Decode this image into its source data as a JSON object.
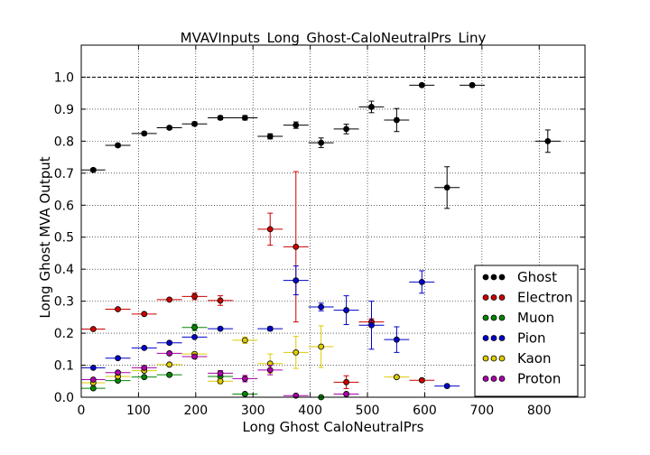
{
  "chart_data": {
    "type": "scatter",
    "title": "MVAVInputs_Long_Ghost-CaloNeutralPrs_Liny",
    "xlabel": "Long Ghost CaloNeutralPrs",
    "ylabel": "Long Ghost MVA Output",
    "xlim": [
      0,
      880
    ],
    "ylim": [
      0,
      1.1
    ],
    "xticks": [
      "0",
      "100",
      "200",
      "300",
      "400",
      "500",
      "600",
      "700",
      "800"
    ],
    "yticks": [
      "0.0",
      "0.1",
      "0.2",
      "0.3",
      "0.4",
      "0.5",
      "0.6",
      "0.7",
      "0.8",
      "0.9",
      "1.0"
    ],
    "reference_line": 1.0,
    "legend_position": "lower-right",
    "series": [
      {
        "name": "Ghost",
        "color": "#000000",
        "points": [
          {
            "x": 21,
            "y": 0.71,
            "xerr": 21,
            "yerr": 0.005
          },
          {
            "x": 64,
            "y": 0.787,
            "xerr": 22,
            "yerr": 0.005
          },
          {
            "x": 110,
            "y": 0.824,
            "xerr": 22,
            "yerr": 0.005
          },
          {
            "x": 154,
            "y": 0.842,
            "xerr": 22,
            "yerr": 0.005
          },
          {
            "x": 198,
            "y": 0.854,
            "xerr": 22,
            "yerr": 0.006
          },
          {
            "x": 243,
            "y": 0.873,
            "xerr": 22,
            "yerr": 0.006
          },
          {
            "x": 286,
            "y": 0.873,
            "xerr": 22,
            "yerr": 0.007
          },
          {
            "x": 330,
            "y": 0.815,
            "xerr": 22,
            "yerr": 0.008
          },
          {
            "x": 375,
            "y": 0.85,
            "xerr": 22,
            "yerr": 0.01
          },
          {
            "x": 419,
            "y": 0.795,
            "xerr": 22,
            "yerr": 0.015
          },
          {
            "x": 463,
            "y": 0.838,
            "xerr": 22,
            "yerr": 0.015
          },
          {
            "x": 507,
            "y": 0.907,
            "xerr": 22,
            "yerr": 0.018
          },
          {
            "x": 551,
            "y": 0.866,
            "xerr": 22,
            "yerr": 0.036
          },
          {
            "x": 595,
            "y": 0.975,
            "xerr": 22,
            "yerr": 0.004
          },
          {
            "x": 639,
            "y": 0.655,
            "xerr": 22,
            "yerr": 0.065
          },
          {
            "x": 683,
            "y": 0.975,
            "xerr": 22,
            "yerr": 0.005
          },
          {
            "x": 815,
            "y": 0.8,
            "xerr": 22,
            "yerr": 0.035
          }
        ]
      },
      {
        "name": "Electron",
        "color": "#cc0000",
        "points": [
          {
            "x": 21,
            "y": 0.213,
            "xerr": 21,
            "yerr": 0.002
          },
          {
            "x": 64,
            "y": 0.275,
            "xerr": 22,
            "yerr": 0.003
          },
          {
            "x": 110,
            "y": 0.26,
            "xerr": 22,
            "yerr": 0.003
          },
          {
            "x": 154,
            "y": 0.305,
            "xerr": 22,
            "yerr": 0.004
          },
          {
            "x": 198,
            "y": 0.315,
            "xerr": 22,
            "yerr": 0.01
          },
          {
            "x": 243,
            "y": 0.302,
            "xerr": 22,
            "yerr": 0.015
          },
          {
            "x": 330,
            "y": 0.525,
            "xerr": 22,
            "yerr": 0.05
          },
          {
            "x": 375,
            "y": 0.47,
            "xerr": 22,
            "yerr": 0.235
          },
          {
            "x": 463,
            "y": 0.047,
            "xerr": 22,
            "yerr": 0.02
          },
          {
            "x": 507,
            "y": 0.235,
            "xerr": 22,
            "yerr": 0.01
          },
          {
            "x": 595,
            "y": 0.053,
            "xerr": 22,
            "yerr": 0.003
          }
        ]
      },
      {
        "name": "Muon",
        "color": "#008800",
        "points": [
          {
            "x": 21,
            "y": 0.028,
            "xerr": 21,
            "yerr": 0.002
          },
          {
            "x": 64,
            "y": 0.052,
            "xerr": 22,
            "yerr": 0.003
          },
          {
            "x": 110,
            "y": 0.063,
            "xerr": 22,
            "yerr": 0.003
          },
          {
            "x": 154,
            "y": 0.07,
            "xerr": 22,
            "yerr": 0.004
          },
          {
            "x": 198,
            "y": 0.218,
            "xerr": 22,
            "yerr": 0.01
          },
          {
            "x": 243,
            "y": 0.065,
            "xerr": 22,
            "yerr": 0.008
          },
          {
            "x": 286,
            "y": 0.01,
            "xerr": 22,
            "yerr": 0.003
          },
          {
            "x": 419,
            "y": 0.0,
            "xerr": 22,
            "yerr": 0.002
          }
        ]
      },
      {
        "name": "Pion",
        "color": "#0000cc",
        "points": [
          {
            "x": 21,
            "y": 0.092,
            "xerr": 21,
            "yerr": 0.002
          },
          {
            "x": 64,
            "y": 0.122,
            "xerr": 22,
            "yerr": 0.002
          },
          {
            "x": 110,
            "y": 0.154,
            "xerr": 22,
            "yerr": 0.003
          },
          {
            "x": 154,
            "y": 0.17,
            "xerr": 22,
            "yerr": 0.003
          },
          {
            "x": 198,
            "y": 0.188,
            "xerr": 22,
            "yerr": 0.004
          },
          {
            "x": 243,
            "y": 0.214,
            "xerr": 22,
            "yerr": 0.004
          },
          {
            "x": 330,
            "y": 0.214,
            "xerr": 22,
            "yerr": 0.006
          },
          {
            "x": 375,
            "y": 0.365,
            "xerr": 22,
            "yerr": 0.045
          },
          {
            "x": 419,
            "y": 0.282,
            "xerr": 22,
            "yerr": 0.012
          },
          {
            "x": 463,
            "y": 0.272,
            "xerr": 22,
            "yerr": 0.045
          },
          {
            "x": 507,
            "y": 0.225,
            "xerr": 22,
            "yerr": 0.075
          },
          {
            "x": 551,
            "y": 0.18,
            "xerr": 22,
            "yerr": 0.04
          },
          {
            "x": 595,
            "y": 0.36,
            "xerr": 22,
            "yerr": 0.035
          },
          {
            "x": 639,
            "y": 0.035,
            "xerr": 22,
            "yerr": 0.003
          }
        ]
      },
      {
        "name": "Kaon",
        "color": "#ddcc00",
        "points": [
          {
            "x": 21,
            "y": 0.045,
            "xerr": 21,
            "yerr": 0.002
          },
          {
            "x": 64,
            "y": 0.065,
            "xerr": 22,
            "yerr": 0.003
          },
          {
            "x": 110,
            "y": 0.083,
            "xerr": 22,
            "yerr": 0.003
          },
          {
            "x": 154,
            "y": 0.102,
            "xerr": 22,
            "yerr": 0.004
          },
          {
            "x": 198,
            "y": 0.135,
            "xerr": 22,
            "yerr": 0.006
          },
          {
            "x": 243,
            "y": 0.05,
            "xerr": 22,
            "yerr": 0.008
          },
          {
            "x": 286,
            "y": 0.178,
            "xerr": 22,
            "yerr": 0.01
          },
          {
            "x": 330,
            "y": 0.105,
            "xerr": 22,
            "yerr": 0.03
          },
          {
            "x": 375,
            "y": 0.14,
            "xerr": 22,
            "yerr": 0.05
          },
          {
            "x": 419,
            "y": 0.158,
            "xerr": 22,
            "yerr": 0.065
          },
          {
            "x": 551,
            "y": 0.063,
            "xerr": 22,
            "yerr": 0.003
          }
        ]
      },
      {
        "name": "Proton",
        "color": "#aa00aa",
        "points": [
          {
            "x": 21,
            "y": 0.055,
            "xerr": 21,
            "yerr": 0.002
          },
          {
            "x": 64,
            "y": 0.077,
            "xerr": 22,
            "yerr": 0.003
          },
          {
            "x": 110,
            "y": 0.092,
            "xerr": 22,
            "yerr": 0.003
          },
          {
            "x": 154,
            "y": 0.137,
            "xerr": 22,
            "yerr": 0.004
          },
          {
            "x": 198,
            "y": 0.127,
            "xerr": 22,
            "yerr": 0.006
          },
          {
            "x": 243,
            "y": 0.075,
            "xerr": 22,
            "yerr": 0.008
          },
          {
            "x": 286,
            "y": 0.058,
            "xerr": 22,
            "yerr": 0.01
          },
          {
            "x": 330,
            "y": 0.085,
            "xerr": 22,
            "yerr": 0.015
          },
          {
            "x": 375,
            "y": 0.005,
            "xerr": 22,
            "yerr": 0.003
          },
          {
            "x": 463,
            "y": 0.01,
            "xerr": 22,
            "yerr": 0.003
          }
        ]
      }
    ]
  }
}
